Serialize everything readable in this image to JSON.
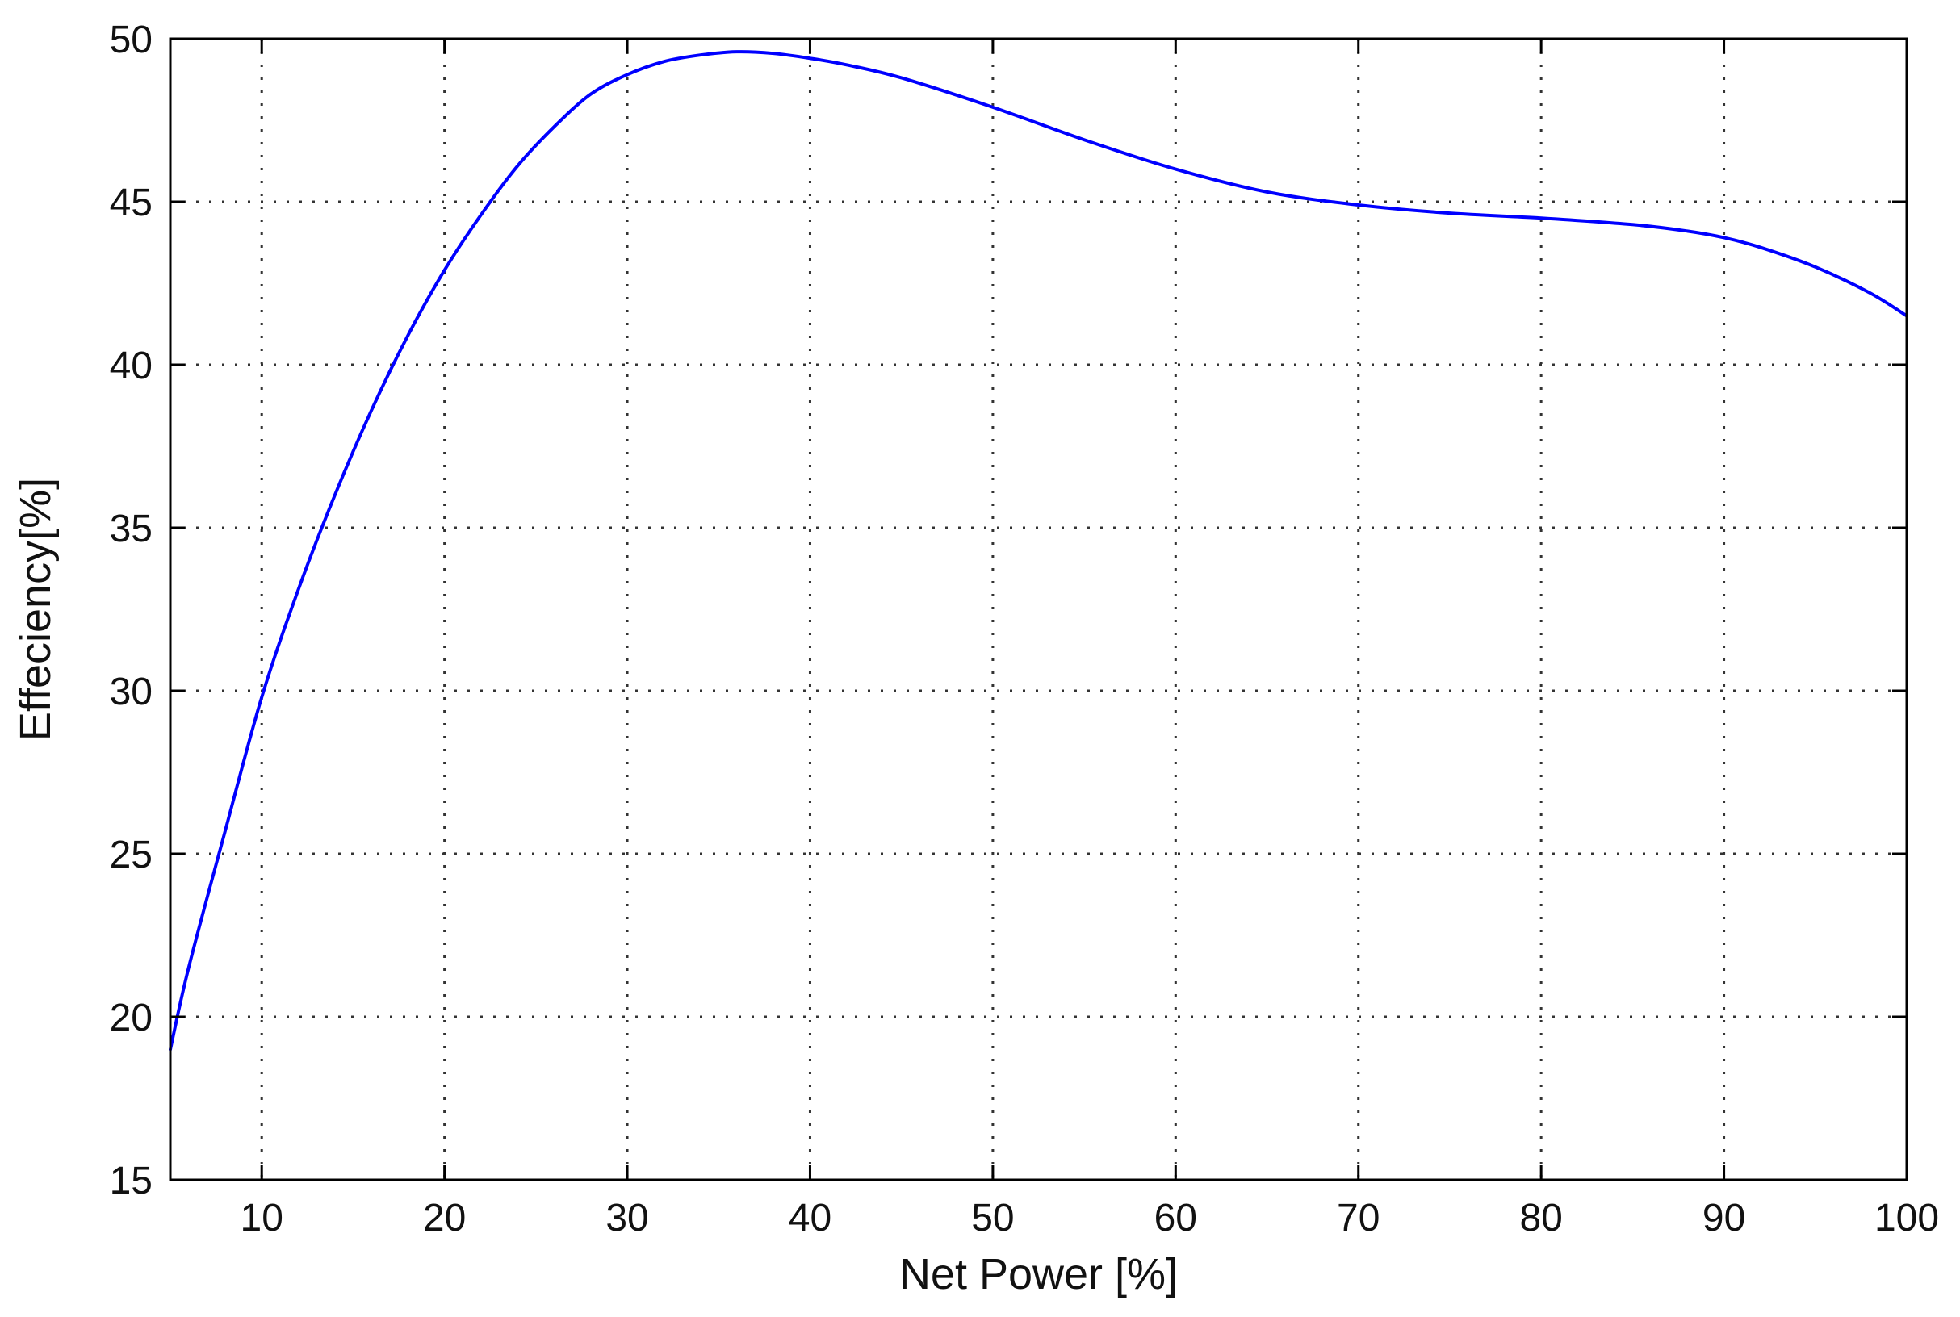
{
  "chart_data": {
    "type": "line",
    "title": "",
    "xlabel": "Net Power [%]",
    "ylabel": "Effeciency[%]",
    "xlim": [
      5,
      100
    ],
    "ylim": [
      15,
      50
    ],
    "x_ticks": [
      10,
      20,
      30,
      40,
      50,
      60,
      70,
      80,
      90,
      100
    ],
    "y_ticks": [
      15,
      20,
      25,
      30,
      35,
      40,
      45,
      50
    ],
    "x_tick_labels": [
      "10",
      "20",
      "30",
      "40",
      "50",
      "60",
      "70",
      "80",
      "90",
      "100"
    ],
    "y_tick_labels": [
      "15",
      "20",
      "25",
      "30",
      "35",
      "40",
      "45",
      "50"
    ],
    "grid": true,
    "grid_style": "dotted",
    "legend": "none",
    "series": [
      {
        "color": "#0000ff",
        "x": [
          5,
          6,
          8,
          10,
          12,
          14,
          16,
          18,
          20,
          22,
          24,
          26,
          28,
          30,
          32,
          34,
          36,
          38,
          40,
          42,
          45,
          50,
          55,
          60,
          65,
          70,
          75,
          80,
          85,
          88,
          90,
          92,
          95,
          98,
          100
        ],
        "y": [
          19.0,
          21.5,
          25.7,
          29.8,
          33.1,
          36.0,
          38.6,
          40.9,
          42.9,
          44.6,
          46.1,
          47.3,
          48.3,
          48.9,
          49.3,
          49.5,
          49.6,
          49.55,
          49.4,
          49.2,
          48.8,
          47.9,
          46.9,
          46.0,
          45.3,
          44.9,
          44.65,
          44.5,
          44.3,
          44.1,
          43.9,
          43.6,
          43.0,
          42.2,
          41.5
        ]
      }
    ]
  }
}
